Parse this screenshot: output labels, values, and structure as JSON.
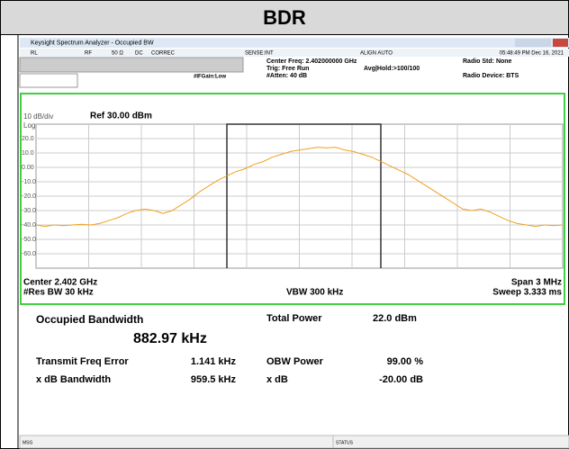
{
  "header": {
    "title": "BDR"
  },
  "window": {
    "title": "Keysight Spectrum Analyzer - Occupied BW",
    "status": [
      "RL",
      "RF",
      "50 Ω",
      "DC",
      "CORREC",
      "SENSE:INT",
      "ALIGN AUTO",
      "05:48:49 PM Dec 16, 2021"
    ],
    "info": {
      "center_freq": "Center Freq: 2.402000000 GHz",
      "trig": "Trig: Free Run",
      "atten": "#Atten: 40 dB",
      "avg": "Avg|Hold:>100/100",
      "ifgain": "#IFGain:Low",
      "radio_std": "Radio Std: None",
      "radio_device": "Radio Device: BTS"
    }
  },
  "chart_data": {
    "type": "line",
    "scale_label": "10 dB/div",
    "ref_label": "Ref 30.00 dBm",
    "scale_type": "Log",
    "ylim": [
      -70,
      30
    ],
    "yticks": [
      {
        "value": 20,
        "label": "20.0"
      },
      {
        "value": 10,
        "label": "10.0"
      },
      {
        "value": 0,
        "label": "0.00"
      },
      {
        "value": -10,
        "label": "-10.0"
      },
      {
        "value": -20,
        "label": "-20.0"
      },
      {
        "value": -30,
        "label": "-30.0"
      },
      {
        "value": -40,
        "label": "-40.0"
      },
      {
        "value": -50,
        "label": "-50.0"
      },
      {
        "value": -60,
        "label": "-60.0"
      }
    ],
    "grid": true,
    "series": [
      {
        "color": "#f0a020",
        "values": [
          -40,
          -41,
          -40,
          -40.5,
          -40,
          -39.5,
          -40,
          -39,
          -37,
          -35,
          -32,
          -30,
          -29,
          -30,
          -32,
          -30,
          -26,
          -22,
          -17,
          -13,
          -9,
          -6,
          -3,
          -1,
          2,
          4,
          7,
          9,
          11,
          12,
          13,
          14,
          13.5,
          14,
          12,
          11,
          9,
          7,
          4,
          1,
          -2,
          -5,
          -9,
          -13,
          -17,
          -21,
          -25,
          -29,
          -30,
          -29,
          -31,
          -34,
          -37,
          -39,
          -40,
          -41,
          -40,
          -40.5,
          -40
        ]
      }
    ],
    "center": "Center 2.402 GHz",
    "res_bw": "#Res BW  30 kHz",
    "vbw": "VBW  300 kHz",
    "span": "Span 3 MHz",
    "sweep": "Sweep  3.333 ms"
  },
  "results": {
    "occupied_bandwidth_label": "Occupied Bandwidth",
    "occupied_bandwidth": "882.97 kHz",
    "total_power_label": "Total Power",
    "total_power": "22.0 dBm",
    "freq_error_label": "Transmit Freq Error",
    "freq_error": "1.141 kHz",
    "obw_power_label": "OBW Power",
    "obw_power": "99.00 %",
    "xdb_bw_label": "x dB Bandwidth",
    "xdb_bw": "959.5 kHz",
    "xdb_label": "x dB",
    "xdb": "-20.00 dB"
  },
  "footer": {
    "msg": "MSG",
    "status": "STATUS"
  }
}
